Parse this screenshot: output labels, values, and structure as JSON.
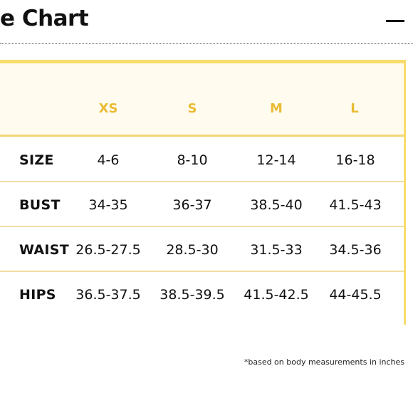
{
  "header": {
    "title": "e Chart",
    "collapse_icon": "minus-icon"
  },
  "colors": {
    "accent_yellow": "#f7dd6c",
    "header_text": "#e9bb35",
    "header_background": "#fffcef",
    "row_divider": "#f2dfa4",
    "text": "#111111"
  },
  "size_table": {
    "columns": [
      "XS",
      "S",
      "M",
      "L"
    ],
    "rows": [
      {
        "label": "SIZE",
        "values": [
          "4-6",
          "8-10",
          "12-14",
          "16-18"
        ]
      },
      {
        "label": "BUST",
        "values": [
          "34-35",
          "36-37",
          "38.5-40",
          "41.5-43"
        ]
      },
      {
        "label": "WAIST",
        "values": [
          "26.5-27.5",
          "28.5-30",
          "31.5-33",
          "34.5-36"
        ]
      },
      {
        "label": "HIPS",
        "values": [
          "36.5-37.5",
          "38.5-39.5",
          "41.5-42.5",
          "44-45.5"
        ]
      }
    ]
  },
  "footnote": "*based on body measurements in inches"
}
